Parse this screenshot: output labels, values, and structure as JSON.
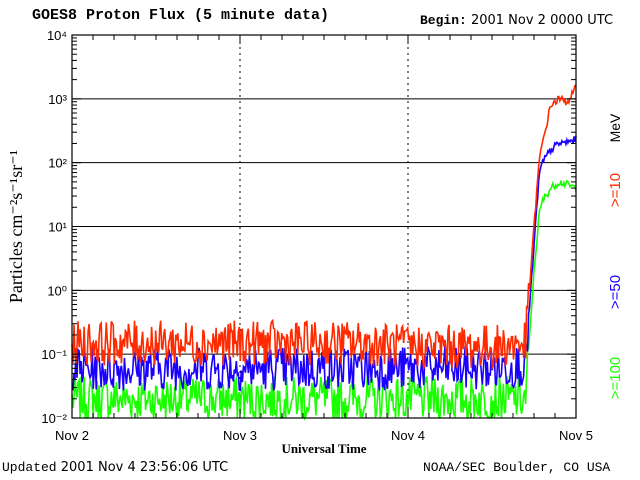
{
  "header": {
    "title": "GOES8 Proton Flux (5 minute data)",
    "begin_label": "Begin:",
    "begin_value": "2001 Nov 2 0000 UTC"
  },
  "footer": {
    "updated_label": "Updated",
    "updated_value": "2001 Nov  4 23:56:06 UTC",
    "agency": "NOAA/SEC Boulder, CO USA"
  },
  "colors": {
    "ge10": "#ff2a00",
    "ge50": "#1a00ff",
    "ge100": "#1aff00",
    "axis": "#000000"
  },
  "chart_data": {
    "type": "line",
    "title": "GOES8 Proton Flux (5 minute data)",
    "xlabel": "Universal Time",
    "ylabel": "Particles cm⁻²s⁻¹sr⁻¹",
    "y_scale": "log",
    "ylim": [
      0.01,
      10000
    ],
    "y_ticks": [
      "10⁻²",
      "10⁻¹",
      "10⁰",
      "10¹",
      "10²",
      "10³",
      "10⁴"
    ],
    "x_ticks": [
      "Nov 2",
      "Nov 3",
      "Nov 4",
      "Nov 5"
    ],
    "xlim": [
      "2001-11-02",
      "2001-11-05"
    ],
    "grid": true,
    "unit_label": "MeV",
    "legend_position": "right",
    "series": [
      {
        "name": ">=10",
        "color": "#ff2a00",
        "x_days": [
          0,
          0.25,
          0.5,
          0.75,
          1.0,
          1.25,
          1.5,
          1.75,
          2.0,
          2.25,
          2.5,
          2.7,
          2.75,
          2.78,
          2.8,
          2.85,
          2.9,
          2.95,
          3.0
        ],
        "values": [
          0.15,
          0.15,
          0.15,
          0.15,
          0.15,
          0.15,
          0.15,
          0.15,
          0.13,
          0.13,
          0.13,
          0.15,
          10,
          100,
          200,
          800,
          1000,
          900,
          1500
        ]
      },
      {
        "name": ">=50",
        "color": "#1a00ff",
        "x_days": [
          0,
          0.25,
          0.5,
          0.75,
          1.0,
          1.25,
          1.5,
          1.75,
          2.0,
          2.25,
          2.5,
          2.7,
          2.75,
          2.78,
          2.8,
          2.85,
          2.9,
          2.95,
          3.0
        ],
        "values": [
          0.06,
          0.06,
          0.06,
          0.06,
          0.06,
          0.06,
          0.06,
          0.06,
          0.06,
          0.06,
          0.06,
          0.07,
          5,
          60,
          100,
          160,
          200,
          210,
          230
        ]
      },
      {
        "name": ">=100",
        "color": "#1aff00",
        "x_days": [
          0,
          0.25,
          0.5,
          0.75,
          1.0,
          1.25,
          1.5,
          1.75,
          2.0,
          2.25,
          2.5,
          2.7,
          2.75,
          2.78,
          2.8,
          2.85,
          2.9,
          2.95,
          3.0
        ],
        "values": [
          0.02,
          0.02,
          0.02,
          0.02,
          0.02,
          0.02,
          0.02,
          0.02,
          0.02,
          0.02,
          0.02,
          0.02,
          2,
          15,
          25,
          40,
          50,
          45,
          40
        ]
      }
    ]
  }
}
